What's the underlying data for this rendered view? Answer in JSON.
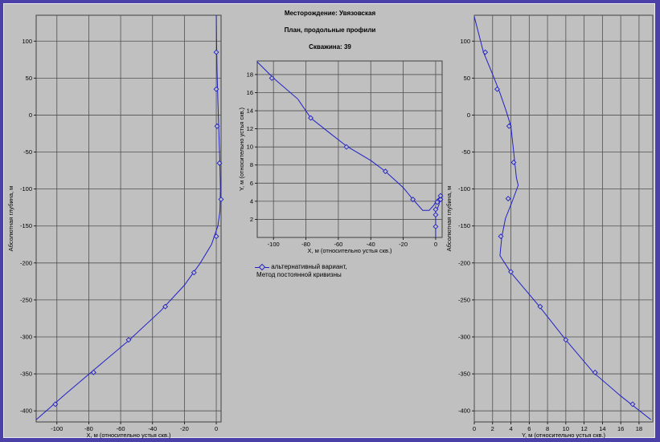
{
  "header": {
    "field": "Месторождение: Увязовская",
    "title": "План, продольные профили",
    "well": "Скважина: 39"
  },
  "legend": {
    "line1": "альтернативный вариант,",
    "line2": "Метод постоянной кривизны"
  },
  "colors": {
    "series": "#2020c8",
    "background": "#c0c0c0",
    "frame": "#4b3fa8"
  },
  "chart_data": [
    {
      "id": "left",
      "type": "line",
      "xlabel": "X, м (относительно устья скв.)",
      "ylabel": "Абсолютная глубина, м",
      "xlim": [
        -113,
        3
      ],
      "ylim": [
        -415,
        135
      ],
      "xticks": [
        -100,
        -80,
        -60,
        -40,
        -20,
        0
      ],
      "yticks": [
        100,
        50,
        0,
        -50,
        -100,
        -150,
        -200,
        -250,
        -300,
        -350,
        -400
      ],
      "grid": true,
      "line": [
        [
          0,
          135
        ],
        [
          0.2,
          100
        ],
        [
          0.5,
          60
        ],
        [
          1,
          20
        ],
        [
          1.6,
          -20
        ],
        [
          2.2,
          -60
        ],
        [
          2.6,
          -100
        ],
        [
          2.3,
          -130
        ],
        [
          1,
          -150
        ],
        [
          -3,
          -175
        ],
        [
          -10,
          -200
        ],
        [
          -20,
          -230
        ],
        [
          -35,
          -265
        ],
        [
          -55,
          -305
        ],
        [
          -77,
          -345
        ],
        [
          -95,
          -378
        ],
        [
          -113,
          -412
        ]
      ],
      "markers": [
        [
          0,
          85
        ],
        [
          0,
          35
        ],
        [
          0.5,
          -15
        ],
        [
          2,
          -65
        ],
        [
          3,
          -114
        ],
        [
          0,
          -164
        ],
        [
          -14,
          -213
        ],
        [
          -32,
          -259
        ],
        [
          -55,
          -304
        ],
        [
          -77,
          -348
        ],
        [
          -101,
          -391
        ]
      ]
    },
    {
      "id": "middle",
      "type": "line",
      "xlabel": "X, м (относительно устья скв.)",
      "ylabel": "Y, м (относительно устья скв.)",
      "xlim": [
        -110,
        4
      ],
      "ylim": [
        0,
        19.5
      ],
      "xticks": [
        -100,
        -80,
        -60,
        -40,
        -20,
        0
      ],
      "yticks": [
        2,
        4,
        6,
        8,
        10,
        12,
        14,
        16,
        18
      ],
      "grid": true,
      "line": [
        [
          -110,
          19.4
        ],
        [
          -100,
          17.6
        ],
        [
          -85,
          15.3
        ],
        [
          -77,
          13.2
        ],
        [
          -65,
          11.5
        ],
        [
          -55,
          10.1
        ],
        [
          -40,
          8.5
        ],
        [
          -31,
          7.3
        ],
        [
          -20,
          5.5
        ],
        [
          -14,
          4.2
        ],
        [
          -8,
          3
        ],
        [
          -4,
          3
        ],
        [
          -1,
          3.6
        ],
        [
          1,
          4.2
        ],
        [
          3,
          4.5
        ],
        [
          2,
          3.6
        ],
        [
          0,
          2.8
        ],
        [
          0,
          0
        ]
      ],
      "markers": [
        [
          -101,
          17.6
        ],
        [
          -77,
          13.2
        ],
        [
          -55,
          10
        ],
        [
          -31,
          7.3
        ],
        [
          -14,
          4.2
        ],
        [
          0,
          3.1
        ],
        [
          1,
          3.9
        ],
        [
          3,
          4.2
        ],
        [
          3,
          4.6
        ],
        [
          0,
          2.5
        ],
        [
          0,
          1.2
        ]
      ]
    },
    {
      "id": "right",
      "type": "line",
      "xlabel": "Y, м (относительно устья скв.)",
      "ylabel": "Абсолютная глубина, м",
      "xlim": [
        0,
        19.5
      ],
      "ylim": [
        -415,
        135
      ],
      "xticks": [
        0,
        2,
        4,
        6,
        8,
        10,
        12,
        14,
        16,
        18
      ],
      "yticks": [
        100,
        50,
        0,
        -50,
        -100,
        -150,
        -200,
        -250,
        -300,
        -350,
        -400
      ],
      "grid": true,
      "line": [
        [
          0,
          133
        ],
        [
          1,
          85
        ],
        [
          2,
          55
        ],
        [
          2.8,
          30
        ],
        [
          3.5,
          5
        ],
        [
          4,
          -15
        ],
        [
          4.3,
          -50
        ],
        [
          4.6,
          -85
        ],
        [
          4.8,
          -95
        ],
        [
          4.2,
          -115
        ],
        [
          3.4,
          -140
        ],
        [
          3,
          -165
        ],
        [
          2.8,
          -190
        ],
        [
          4,
          -213
        ],
        [
          7,
          -257
        ],
        [
          10,
          -304
        ],
        [
          13,
          -348
        ],
        [
          16,
          -380
        ],
        [
          19.3,
          -412
        ]
      ],
      "markers": [
        [
          1.2,
          85
        ],
        [
          2.5,
          35
        ],
        [
          3.8,
          -15
        ],
        [
          4.3,
          -64
        ],
        [
          3.7,
          -113
        ],
        [
          2.9,
          -164
        ],
        [
          4,
          -212
        ],
        [
          7.2,
          -259
        ],
        [
          10,
          -304
        ],
        [
          13.2,
          -348
        ],
        [
          17.3,
          -391
        ]
      ]
    }
  ]
}
